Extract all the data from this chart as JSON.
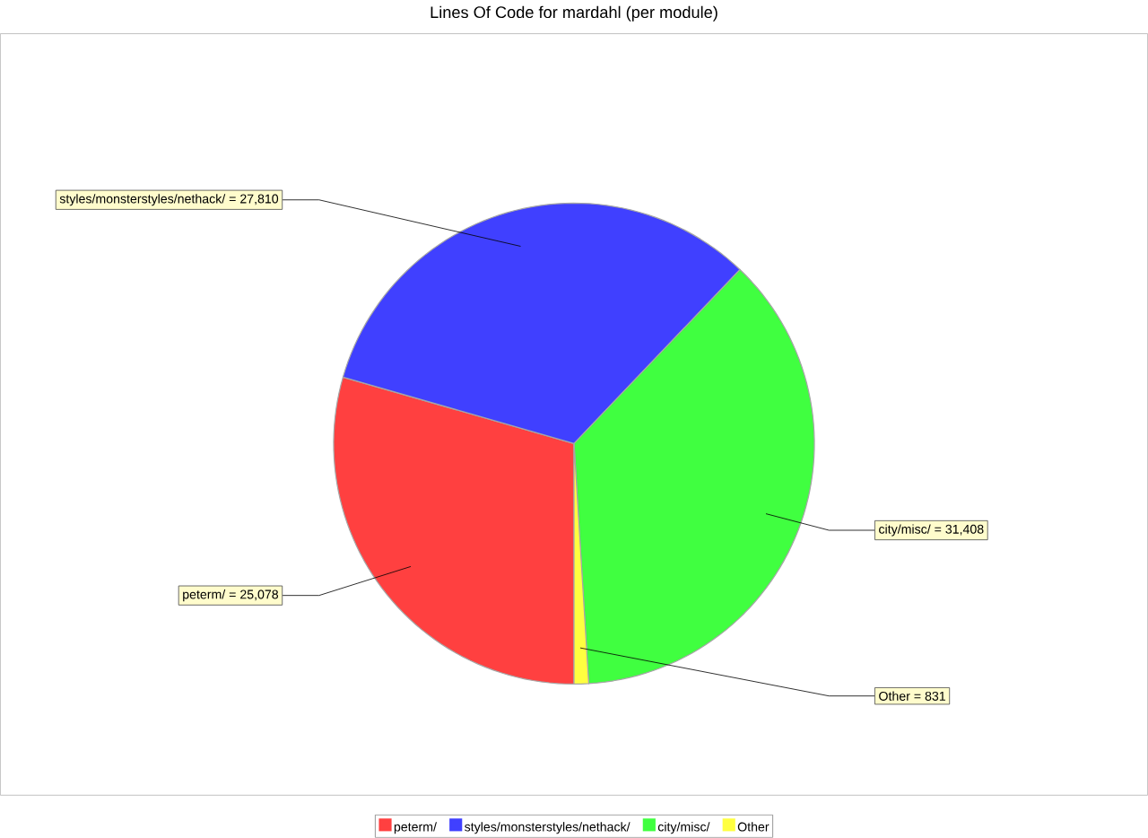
{
  "chart_data": {
    "type": "pie",
    "title": "Lines Of Code for mardahl (per module)",
    "categories": [
      "peterm/",
      "styles/monsterstyles/nethack/",
      "city/misc/",
      "Other"
    ],
    "values": [
      25078,
      27810,
      31408,
      831
    ],
    "colors": [
      "#ff4040",
      "#4040ff",
      "#40ff40",
      "#ffff40"
    ],
    "value_labels": [
      "peterm/ = 25,078",
      "styles/monsterstyles/nethack/ = 27,810",
      "city/misc/ = 31,408",
      "Other = 831"
    ],
    "legend": "bottom"
  }
}
